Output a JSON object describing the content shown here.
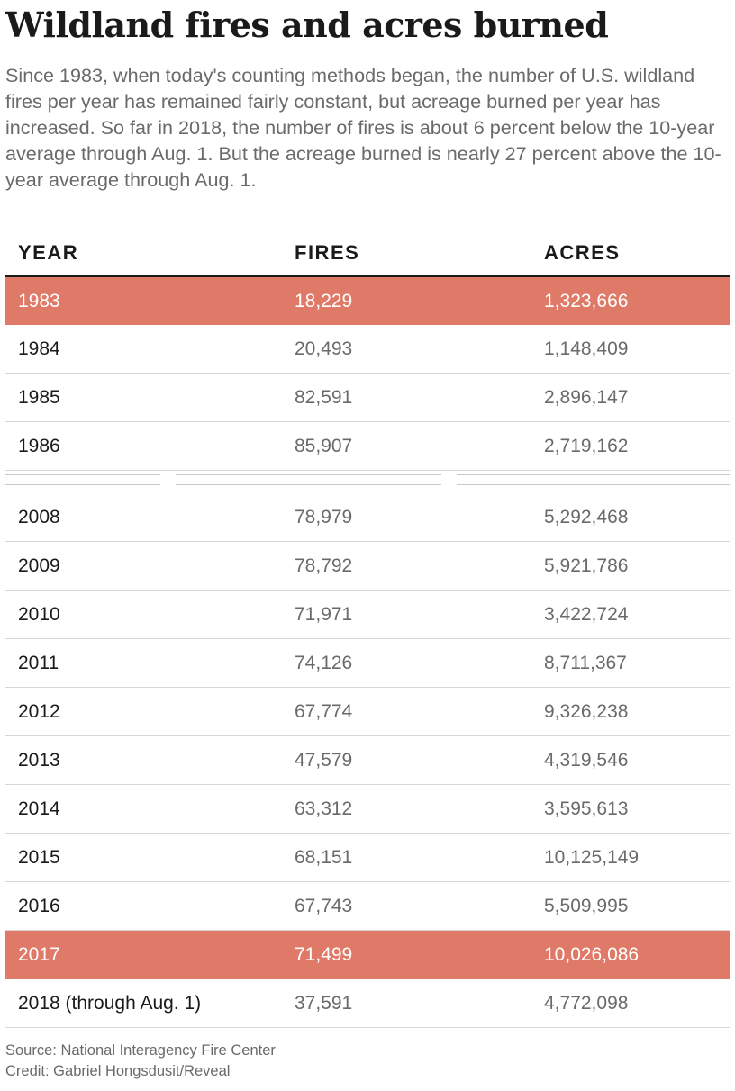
{
  "title": "Wildland fires and acres burned",
  "subtitle": "Since 1983, when today's counting methods began, the number of U.S. wildland fires per year has remained fairly constant, but acreage burned per year has increased.  So far in 2018, the number of fires is about 6 percent below the 10-year average through Aug. 1. But the acreage burned is nearly 27 percent above the 10-year average through Aug. 1.",
  "colors": {
    "highlight": "#e07a68",
    "text": "#1a1a1a",
    "muted": "#6a6a6a"
  },
  "chart_data": {
    "type": "table",
    "columns": [
      "YEAR",
      "FIRES",
      "ACRES"
    ],
    "rows_before_break": [
      {
        "year": "1983",
        "fires": "18,229",
        "acres": "1,323,666",
        "highlight": true
      },
      {
        "year": "1984",
        "fires": "20,493",
        "acres": "1,148,409",
        "highlight": false
      },
      {
        "year": "1985",
        "fires": "82,591",
        "acres": "2,896,147",
        "highlight": false
      },
      {
        "year": "1986",
        "fires": "85,907",
        "acres": "2,719,162",
        "highlight": false
      }
    ],
    "rows_after_break": [
      {
        "year": "2008",
        "fires": "78,979",
        "acres": "5,292,468",
        "highlight": false
      },
      {
        "year": "2009",
        "fires": "78,792",
        "acres": "5,921,786",
        "highlight": false
      },
      {
        "year": "2010",
        "fires": "71,971",
        "acres": "3,422,724",
        "highlight": false
      },
      {
        "year": "2011",
        "fires": "74,126",
        "acres": "8,711,367",
        "highlight": false
      },
      {
        "year": "2012",
        "fires": "67,774",
        "acres": "9,326,238",
        "highlight": false
      },
      {
        "year": "2013",
        "fires": "47,579",
        "acres": "4,319,546",
        "highlight": false
      },
      {
        "year": "2014",
        "fires": "63,312",
        "acres": "3,595,613",
        "highlight": false
      },
      {
        "year": "2015",
        "fires": "68,151",
        "acres": "10,125,149",
        "highlight": false
      },
      {
        "year": "2016",
        "fires": "67,743",
        "acres": "5,509,995",
        "highlight": false
      },
      {
        "year": "2017",
        "fires": "71,499",
        "acres": "10,026,086",
        "highlight": true
      },
      {
        "year": "2018 (through Aug. 1)",
        "fires": "37,591",
        "acres": "4,772,098",
        "highlight": false
      }
    ]
  },
  "footer": {
    "source": "Source: National Interagency Fire Center",
    "credit": "Credit: Gabriel Hongsdusit/Reveal"
  }
}
